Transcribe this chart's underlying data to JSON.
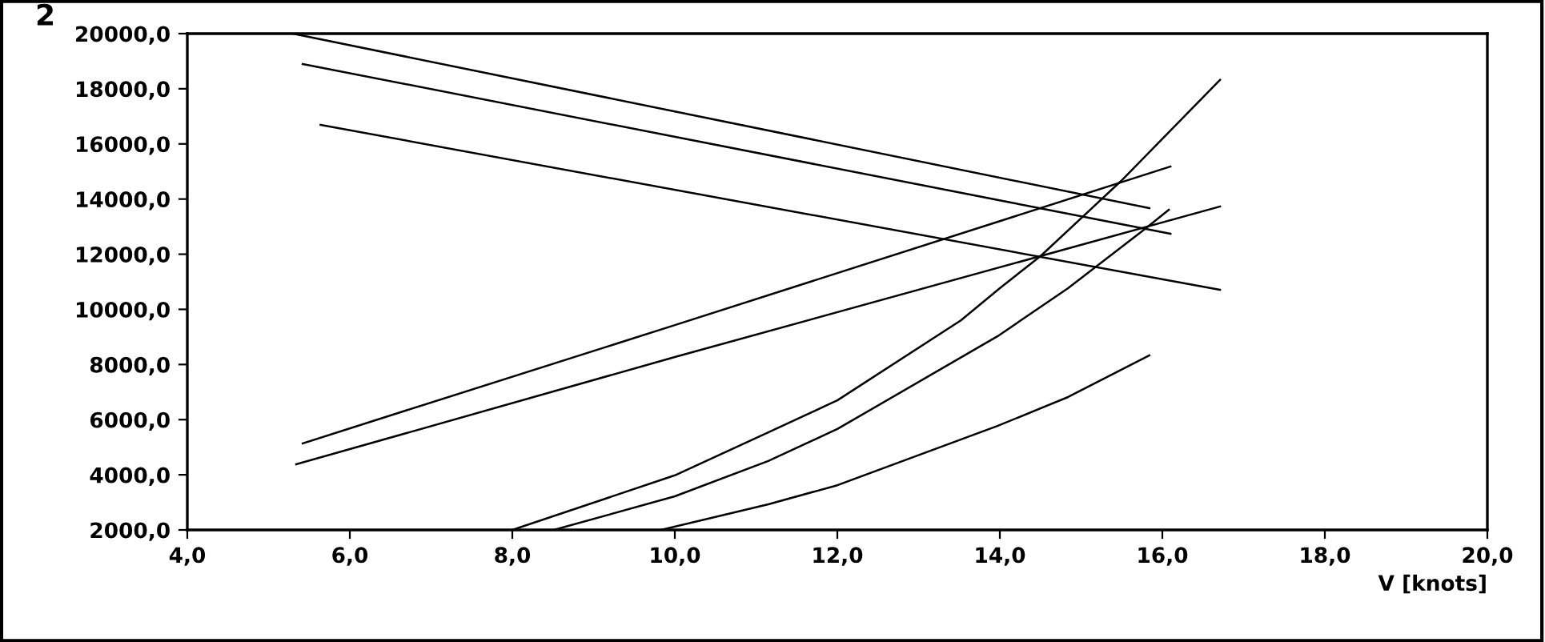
{
  "chart_data": {
    "type": "line",
    "xlabel": "V [knots]",
    "annotations": [
      "2"
    ],
    "xlim": [
      4.0,
      20.0
    ],
    "ylim": [
      2000,
      20000
    ],
    "xticks": [
      {
        "value": 4,
        "label": "4,0"
      },
      {
        "value": 6,
        "label": "6,0"
      },
      {
        "value": 8,
        "label": "8,0"
      },
      {
        "value": 10,
        "label": "10,0"
      },
      {
        "value": 12,
        "label": "12,0"
      },
      {
        "value": 14,
        "label": "14,0"
      },
      {
        "value": 16,
        "label": "16,0"
      },
      {
        "value": 18,
        "label": "18,0"
      },
      {
        "value": 20,
        "label": "20,0"
      }
    ],
    "yticks": [
      {
        "value": 2000,
        "label": "2000,0"
      },
      {
        "value": 4000,
        "label": "4000,0"
      },
      {
        "value": 6000,
        "label": "6000,0"
      },
      {
        "value": 8000,
        "label": "8000,0"
      },
      {
        "value": 10000,
        "label": "10000,0"
      },
      {
        "value": 12000,
        "label": "12000,0"
      },
      {
        "value": 14000,
        "label": "14000,0"
      },
      {
        "value": 16000,
        "label": "16000,0"
      },
      {
        "value": 18000,
        "label": "18000,0"
      },
      {
        "value": 20000,
        "label": "20000,0"
      }
    ],
    "grid": false,
    "marker": "none",
    "line_style": "solid",
    "series": [
      {
        "color": "#000000",
        "x": [
          5.3,
          15.84
        ],
        "values": [
          20000,
          13670
        ]
      },
      {
        "color": "#000000",
        "x": [
          5.42,
          16.1
        ],
        "values": [
          18900,
          12740
        ]
      },
      {
        "color": "#000000",
        "x": [
          5.64,
          16.71
        ],
        "values": [
          16690,
          10710
        ]
      },
      {
        "color": "#000000",
        "x": [
          5.42,
          10.0,
          16.1
        ],
        "values": [
          5140,
          9430,
          15180
        ]
      },
      {
        "color": "#000000",
        "x": [
          5.34,
          10.0,
          16.71
        ],
        "values": [
          4380,
          8270,
          13730
        ]
      },
      {
        "color": "#000000",
        "x": [
          8.0,
          10.0,
          11.15,
          12.0,
          13.52,
          14.0,
          14.5,
          15.49,
          16.71
        ],
        "values": [
          2000,
          3980,
          5540,
          6700,
          9600,
          10770,
          11930,
          14650,
          18320
        ]
      },
      {
        "color": "#000000",
        "x": [
          8.51,
          10.0,
          11.15,
          12.0,
          13.97,
          14.84,
          15.78,
          16.08
        ],
        "values": [
          2000,
          3220,
          4500,
          5660,
          9020,
          10770,
          12900,
          13610
        ]
      },
      {
        "color": "#000000",
        "x": [
          9.83,
          11.15,
          12.0,
          13.97,
          14.84,
          15.84
        ],
        "values": [
          2000,
          2930,
          3620,
          5770,
          6820,
          8330
        ]
      }
    ]
  }
}
